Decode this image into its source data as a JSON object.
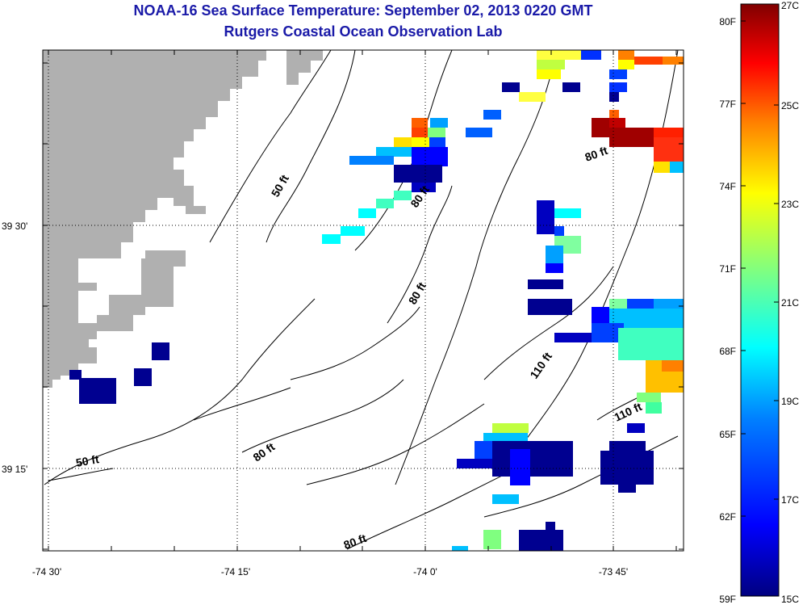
{
  "title": "NOAA-16 Sea Surface Temperature:  September 02, 2013 0220 GMT",
  "subtitle": "Rutgers Coastal Ocean Observation Lab",
  "axes": {
    "x_labels": [
      "-74 30'",
      "-74 15'",
      "-74 0'",
      "-73 45'"
    ],
    "y_labels": [
      "39 30'",
      "39 15'"
    ]
  },
  "contour_labels": [
    "50 ft",
    "80 ft",
    "80 ft",
    "80 ft",
    "80 ft",
    "110 ft",
    "110 ft",
    "80 ft",
    "50 ft"
  ],
  "colorbar": {
    "f_labels": [
      "80F",
      "77F",
      "74F",
      "71F",
      "68F",
      "65F",
      "62F",
      "59F"
    ],
    "c_labels": [
      "27C",
      "25C",
      "23C",
      "21C",
      "19C",
      "17C",
      "15C"
    ],
    "colors": [
      "#800000",
      "#ff0000",
      "#ff8000",
      "#ffff00",
      "#80ff80",
      "#00ffff",
      "#0080ff",
      "#0000ff",
      "#000080"
    ]
  },
  "colors": {
    "land": "#b0b0b0",
    "title": "#1a1aa8"
  }
}
